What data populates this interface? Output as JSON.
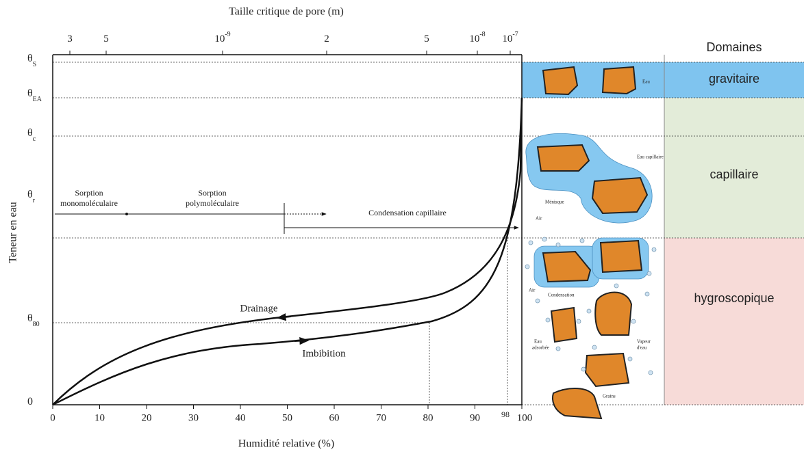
{
  "top_axis": {
    "title": "Taille critique de pore (m)",
    "ticks": [
      {
        "text": "3"
      },
      {
        "text": "5"
      },
      {
        "text": "10",
        "sup": "-9"
      },
      {
        "text": "2"
      },
      {
        "text": "5"
      },
      {
        "text": "10",
        "sup": "-8"
      },
      {
        "text": "10",
        "sup": "-7"
      }
    ]
  },
  "y_axis": {
    "title": "Teneur en eau",
    "labels": [
      {
        "text": "θ",
        "sub": "S"
      },
      {
        "text": "θ",
        "sub": "EA"
      },
      {
        "text": "θ",
        "sub": "c"
      },
      {
        "text": "θ",
        "sub": "r"
      },
      {
        "text": "θ",
        "sub": "80"
      },
      {
        "text": "0"
      }
    ]
  },
  "x_axis": {
    "title": "Humidité relative (%)",
    "ticks": [
      "0",
      "10",
      "20",
      "30",
      "40",
      "50",
      "60",
      "70",
      "80",
      "90",
      "100"
    ],
    "extra_tick": "98"
  },
  "annotations": {
    "sorption_mono": [
      "Sorption",
      "monomoléculaire"
    ],
    "sorption_poly": [
      "Sorption",
      "polymoléculaire"
    ],
    "condensation": "Condensation capillaire",
    "drainage": "Drainage",
    "imbibition": "Imbibition"
  },
  "domains": {
    "title": "Domaines",
    "items": [
      "gravitaire",
      "capillaire",
      "hygroscopique"
    ]
  },
  "illustration": {
    "eau": "Eau",
    "eau_capillaire": "Eau capillaire",
    "menisque": "Ménisque",
    "air1": "Air",
    "air2": "Air",
    "condensation": "Condensation",
    "eau_adsorbee": [
      "Eau",
      "adsorbée"
    ],
    "vapeur": [
      "Vapeur",
      "d'eau"
    ],
    "grains": "Grains"
  }
}
